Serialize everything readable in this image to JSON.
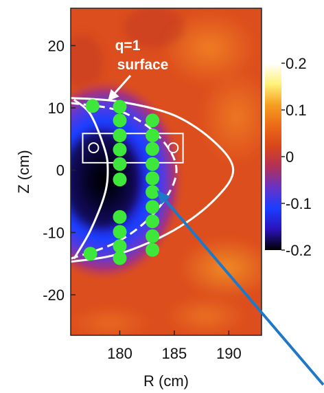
{
  "chart_data": {
    "type": "heatmap",
    "x_axis": {
      "label": "R (cm)",
      "range": [
        175.5,
        193.0
      ],
      "ticks": [
        180,
        185,
        190
      ]
    },
    "y_axis": {
      "label": "Z (cm)",
      "range": [
        -26.5,
        26.0
      ],
      "ticks": [
        20,
        10,
        0,
        -10,
        -20
      ]
    },
    "colorbar": {
      "range": [
        -0.2,
        0.2
      ],
      "ticks": [
        "0.2",
        "0.1",
        "0",
        "-0.1",
        "-0.2"
      ],
      "colors": [
        "#000000",
        "#2a12b8",
        "#1a3dff",
        "#6633c8",
        "#b0305a",
        "#d9461a",
        "#ec6a18",
        "#f5a020",
        "#fff27a",
        "#ffffff"
      ]
    },
    "background_color": "#dd4e1e",
    "annotation": {
      "line1": "q=1",
      "line2": "surface",
      "arrow_tip": [
        178.9,
        11.1
      ]
    },
    "outer_boundary": {
      "color": "#ffffff",
      "style": "solid",
      "points": [
        [
          175.5,
          11.6
        ],
        [
          180.0,
          11.0
        ],
        [
          185.0,
          8.8
        ],
        [
          188.7,
          4.5
        ],
        [
          190.4,
          0.0
        ],
        [
          188.7,
          -4.7
        ],
        [
          185.0,
          -9.6
        ],
        [
          180.0,
          -13.4
        ],
        [
          175.5,
          -14.7
        ]
      ]
    },
    "q1_surface": {
      "color": "#ffffff",
      "style": "dashed",
      "points": [
        [
          175.5,
          10.8
        ],
        [
          180.0,
          9.5
        ],
        [
          183.5,
          5.6
        ],
        [
          185.2,
          0.0
        ],
        [
          183.5,
          -6.2
        ],
        [
          180.0,
          -11.3
        ],
        [
          175.5,
          -14.2
        ]
      ]
    },
    "inner_boundary": {
      "color": "#ffffff",
      "style": "solid",
      "points": [
        [
          175.8,
          11.3
        ],
        [
          177.3,
          9.0
        ],
        [
          178.6,
          3.5
        ],
        [
          178.9,
          0.0
        ],
        [
          178.6,
          -4.0
        ],
        [
          177.3,
          -9.7
        ],
        [
          175.8,
          -14.2
        ]
      ]
    },
    "channels": {
      "color": "#3ee83a",
      "points": [
        [
          177.5,
          10.3
        ],
        [
          180.0,
          10.2
        ],
        [
          180.0,
          8.0
        ],
        [
          180.0,
          5.6
        ],
        [
          180.0,
          3.3
        ],
        [
          180.0,
          1.0
        ],
        [
          180.0,
          -1.5
        ],
        [
          180.0,
          -7.5
        ],
        [
          180.0,
          -9.9
        ],
        [
          180.0,
          -12.2
        ],
        [
          180.0,
          -14.1
        ],
        [
          183.0,
          8.0
        ],
        [
          183.0,
          5.6
        ],
        [
          183.0,
          3.4
        ],
        [
          183.0,
          1.0
        ],
        [
          183.0,
          -1.3
        ],
        [
          183.0,
          -3.5
        ],
        [
          183.0,
          -5.9
        ],
        [
          183.0,
          -8.2
        ],
        [
          183.0,
          -10.6
        ],
        [
          183.0,
          -12.8
        ],
        [
          177.3,
          -13.4
        ]
      ]
    },
    "diagnostic_box": {
      "x_range": [
        176.6,
        185.8
      ],
      "y_range": [
        1.2,
        5.9
      ],
      "markers": [
        [
          177.6,
          3.6
        ],
        [
          184.9,
          3.6
        ]
      ]
    },
    "pointer_arrow": {
      "color": "#1e78c8",
      "from": "bottom-right",
      "to": [
        183.4,
        -3.2
      ]
    }
  }
}
